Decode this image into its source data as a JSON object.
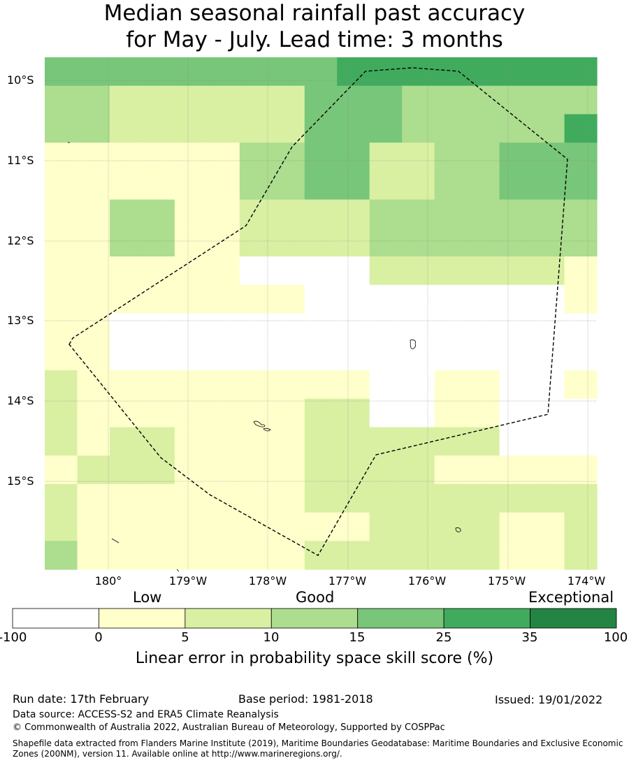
{
  "title_line1": "Median seasonal rainfall past accuracy",
  "title_line2": "for May - July. Lead time: 3 months",
  "map": {
    "lat_labels": [
      "10°S",
      "11°S",
      "12°S",
      "13°S",
      "14°S",
      "15°S"
    ],
    "lon_labels": [
      "180°",
      "179°W",
      "178°W",
      "177°W",
      "176°W",
      "175°W",
      "174°W"
    ],
    "boundary": "dashed",
    "grid": true
  },
  "colorbar": {
    "category_labels": [
      "Low",
      "Good",
      "Exceptional"
    ],
    "ticks": [
      "-100",
      "0",
      "5",
      "10",
      "15",
      "25",
      "35",
      "100"
    ],
    "colors": [
      "#ffffff",
      "#ffffcc",
      "#d9f0a3",
      "#addd8e",
      "#78c679",
      "#41ab5d",
      "#238443"
    ],
    "title": "Linear error in probability space skill score (%)"
  },
  "grid_values": {
    "rows": [
      [
        4,
        4,
        4,
        4,
        4,
        4,
        4,
        4,
        4,
        5,
        5,
        5,
        5,
        5,
        5,
        5,
        5
      ],
      [
        3,
        3,
        2,
        2,
        2,
        2,
        2,
        2,
        4,
        4,
        4,
        3,
        3,
        3,
        3,
        3,
        3
      ],
      [
        3,
        3,
        2,
        2,
        2,
        2,
        2,
        2,
        4,
        4,
        4,
        3,
        3,
        3,
        3,
        3,
        5
      ],
      [
        1,
        1,
        1,
        1,
        1,
        1,
        3,
        3,
        4,
        4,
        2,
        2,
        3,
        3,
        4,
        4,
        4
      ],
      [
        1,
        1,
        1,
        1,
        1,
        1,
        3,
        3,
        4,
        4,
        2,
        2,
        3,
        3,
        4,
        4,
        4
      ],
      [
        1,
        1,
        3,
        3,
        1,
        1,
        2,
        2,
        2,
        2,
        3,
        3,
        3,
        3,
        3,
        3,
        3
      ],
      [
        1,
        1,
        3,
        3,
        1,
        1,
        2,
        2,
        2,
        2,
        3,
        3,
        3,
        3,
        3,
        3,
        3
      ],
      [
        1,
        1,
        1,
        1,
        1,
        1,
        0,
        0,
        0,
        0,
        2,
        2,
        2,
        2,
        2,
        2,
        1
      ],
      [
        1,
        1,
        1,
        1,
        1,
        1,
        1,
        1,
        0,
        0,
        0,
        0,
        0,
        0,
        0,
        0,
        1
      ],
      [
        1,
        1,
        0,
        0,
        0,
        0,
        0,
        0,
        0,
        0,
        0,
        0,
        0,
        0,
        0,
        0,
        0
      ],
      [
        1,
        1,
        0,
        0,
        0,
        0,
        0,
        0,
        0,
        0,
        0,
        0,
        0,
        0,
        0,
        0,
        0
      ],
      [
        2,
        1,
        1,
        1,
        1,
        1,
        1,
        1,
        1,
        1,
        0,
        0,
        1,
        1,
        0,
        0,
        1
      ],
      [
        2,
        1,
        1,
        1,
        1,
        1,
        1,
        1,
        2,
        2,
        0,
        0,
        1,
        1,
        0,
        0,
        0
      ],
      [
        2,
        1,
        2,
        2,
        1,
        1,
        1,
        1,
        2,
        2,
        2,
        2,
        2,
        2,
        0,
        0,
        0
      ],
      [
        1,
        2,
        2,
        2,
        1,
        1,
        1,
        1,
        2,
        2,
        2,
        2,
        1,
        1,
        1,
        1,
        1
      ],
      [
        2,
        1,
        1,
        1,
        1,
        1,
        1,
        1,
        2,
        2,
        2,
        2,
        2,
        2,
        2,
        2,
        2
      ],
      [
        2,
        1,
        1,
        1,
        1,
        1,
        1,
        1,
        1,
        1,
        2,
        2,
        2,
        2,
        1,
        1,
        2
      ],
      [
        3,
        1,
        1,
        1,
        1,
        1,
        1,
        1,
        2,
        2,
        2,
        2,
        2,
        2,
        1,
        1,
        2
      ]
    ]
  },
  "footer": {
    "run_date": "Run date: 17th February",
    "base_period": "Base period: 1981-2018",
    "issued": "Issued: 19/01/2022",
    "data_source": "Data source: ACCESS-S2 and ERA5 Climate Reanalysis",
    "copyright": "© Commonwealth of Australia 2022, Australian Bureau of Meteorology, Supported by COSPPac",
    "shapefile": "Shapefile data extracted from Flanders Marine Institute (2019), Maritime Boundaries Geodatabase: Maritime Boundaries and Exclusive Economic Zones (200NM), version 11. Available online at http://www.marineregions.org/."
  }
}
